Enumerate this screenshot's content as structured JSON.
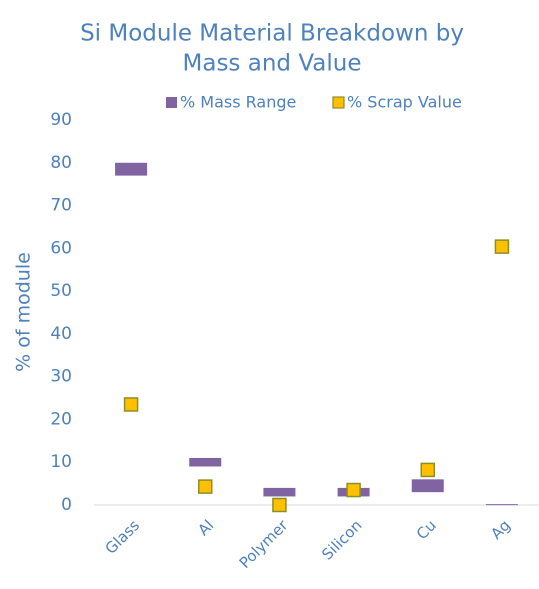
{
  "chart_data": {
    "type": "range",
    "title": [
      "Si Module Material Breakdown by",
      "Mass and Value"
    ],
    "ylabel": "% of module",
    "categories": [
      "Glass",
      "Al",
      "Polymer",
      "Silicon",
      "Cu",
      "Ag"
    ],
    "series": [
      {
        "name": "% Mass Range",
        "type": "bar",
        "color": "#8064a2",
        "low": [
          77,
          9,
          2,
          2,
          3,
          0
        ],
        "high": [
          80,
          11,
          4,
          4,
          6,
          0.2
        ]
      },
      {
        "name": "% Scrap Value",
        "type": "scatter",
        "color": "#ffc000",
        "edgecolor": "#8a8f2a",
        "values": [
          23.5,
          4.3,
          0,
          3.5,
          8.2,
          60.4
        ]
      }
    ],
    "ylim": [
      0,
      90
    ],
    "yticks": [
      0,
      10,
      20,
      30,
      40,
      50,
      60,
      70,
      80,
      90
    ],
    "legend": "top",
    "grid": false
  }
}
